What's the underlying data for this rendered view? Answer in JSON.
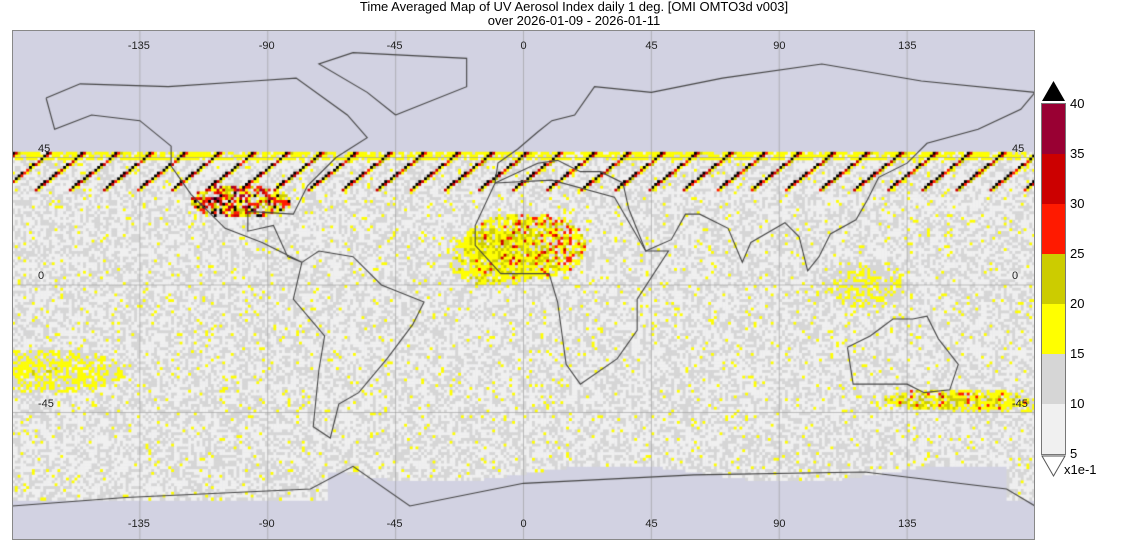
{
  "title": "Time Averaged Map of UV Aerosol Index daily 1 deg. [OMI OMTO3d v003]",
  "subtitle": "over 2026-01-09 - 2026-01-11",
  "map": {
    "projection": "equirectangular",
    "lon_range": [
      -180,
      180
    ],
    "lat_range": [
      -90,
      90
    ],
    "no_data_color": "#d2d2e2",
    "lon_labels": [
      "-135",
      "-90",
      "-45",
      "0",
      "45",
      "90",
      "135"
    ],
    "lat_labels": [
      "45",
      "0",
      "-45"
    ]
  },
  "colorbar": {
    "unit": "x1e-1",
    "ticks": [
      "40",
      "35",
      "30",
      "25",
      "20",
      "15",
      "10",
      "5"
    ],
    "bins": [
      {
        "range": [
          35,
          40
        ],
        "color": "#990033"
      },
      {
        "range": [
          30,
          35
        ],
        "color": "#cc0000"
      },
      {
        "range": [
          25,
          30
        ],
        "color": "#ff1a00"
      },
      {
        "range": [
          20,
          25
        ],
        "color": "#cccc00"
      },
      {
        "range": [
          15,
          20
        ],
        "color": "#ffff00"
      },
      {
        "range": [
          10,
          15
        ],
        "color": "#d6d6d6"
      },
      {
        "range": [
          5,
          10
        ],
        "color": "#f0f0f0"
      }
    ],
    "over_color": "#000000",
    "under_color": "#ffffff"
  }
}
